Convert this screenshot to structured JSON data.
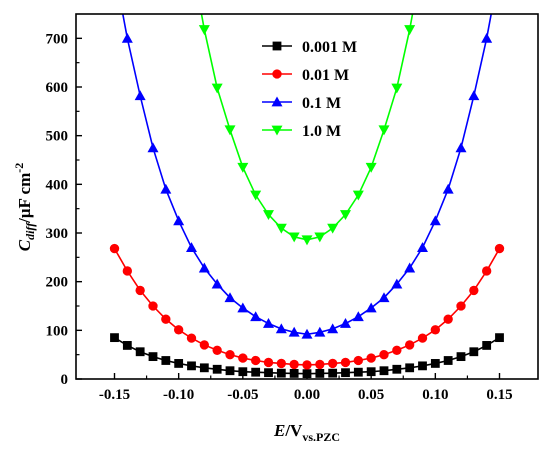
{
  "chart_data": {
    "type": "line",
    "title": "",
    "xlabel": {
      "symbol": "E",
      "unit": "/V",
      "subscript": "vs.PZC"
    },
    "ylabel": {
      "symbol": "C",
      "subscript": "diff",
      "unit": "/μF cm",
      "exponent": "-2"
    },
    "xlim": [
      -0.18,
      0.18
    ],
    "ylim": [
      0,
      750
    ],
    "xticks": [
      -0.15,
      -0.1,
      -0.05,
      0.0,
      0.05,
      0.1,
      0.15
    ],
    "xtick_labels": [
      "-0.15",
      "-0.10",
      "-0.05",
      "0.00",
      "0.05",
      "0.10",
      "0.15"
    ],
    "yticks": [
      0,
      100,
      200,
      300,
      400,
      500,
      600,
      700
    ],
    "ytick_labels": [
      "0",
      "100",
      "200",
      "300",
      "400",
      "500",
      "600",
      "700"
    ],
    "grid": false,
    "legend_position": "top-center",
    "series": [
      {
        "name": "0.001 M",
        "color": "#000000",
        "marker": "square",
        "x": [
          -0.15,
          -0.14,
          -0.13,
          -0.12,
          -0.11,
          -0.1,
          -0.09,
          -0.08,
          -0.07,
          -0.06,
          -0.05,
          -0.04,
          -0.03,
          -0.02,
          -0.01,
          0.0,
          0.01,
          0.02,
          0.03,
          0.04,
          0.05,
          0.06,
          0.07,
          0.08,
          0.09,
          0.1,
          0.11,
          0.12,
          0.13,
          0.14,
          0.15
        ],
        "values": [
          85,
          69,
          56,
          46,
          38,
          32,
          27,
          23,
          20,
          17,
          15,
          14,
          13,
          12,
          11.5,
          11,
          11.5,
          12,
          13,
          14,
          15,
          17,
          20,
          23,
          27,
          32,
          38,
          46,
          56,
          69,
          85
        ]
      },
      {
        "name": "0.01 M",
        "color": "#ff0000",
        "marker": "circle",
        "x": [
          -0.15,
          -0.14,
          -0.13,
          -0.12,
          -0.11,
          -0.1,
          -0.09,
          -0.08,
          -0.07,
          -0.06,
          -0.05,
          -0.04,
          -0.03,
          -0.02,
          -0.01,
          0.0,
          0.01,
          0.02,
          0.03,
          0.04,
          0.05,
          0.06,
          0.07,
          0.08,
          0.09,
          0.1,
          0.11,
          0.12,
          0.13,
          0.14,
          0.15
        ],
        "values": [
          268,
          222,
          182,
          150,
          123,
          101,
          84,
          70,
          59,
          50,
          43,
          38,
          34,
          32,
          30,
          29,
          30,
          32,
          34,
          38,
          43,
          50,
          59,
          70,
          84,
          101,
          123,
          150,
          182,
          222,
          268
        ]
      },
      {
        "name": "0.1 M",
        "color": "#0000ff",
        "marker": "triangle-up",
        "x": [
          -0.14,
          -0.13,
          -0.12,
          -0.11,
          -0.1,
          -0.09,
          -0.08,
          -0.07,
          -0.06,
          -0.05,
          -0.04,
          -0.03,
          -0.02,
          -0.01,
          0.0,
          0.01,
          0.02,
          0.03,
          0.04,
          0.05,
          0.06,
          0.07,
          0.08,
          0.09,
          0.1,
          0.11,
          0.12,
          0.13,
          0.14
        ],
        "values": [
          700,
          582,
          475,
          390,
          325,
          270,
          228,
          195,
          167,
          146,
          128,
          114,
          103,
          96,
          92,
          96,
          103,
          114,
          128,
          146,
          167,
          195,
          228,
          270,
          325,
          390,
          475,
          582,
          700
        ]
      },
      {
        "name": "1.0 M",
        "color": "#00ff00",
        "marker": "triangle-down",
        "x": [
          -0.08,
          -0.07,
          -0.06,
          -0.05,
          -0.04,
          -0.03,
          -0.02,
          -0.01,
          0.0,
          0.01,
          0.02,
          0.03,
          0.04,
          0.05,
          0.06,
          0.07,
          0.08
        ],
        "values": [
          718,
          598,
          512,
          435,
          378,
          338,
          310,
          292,
          286,
          292,
          310,
          338,
          378,
          435,
          512,
          598,
          718
        ]
      }
    ]
  }
}
